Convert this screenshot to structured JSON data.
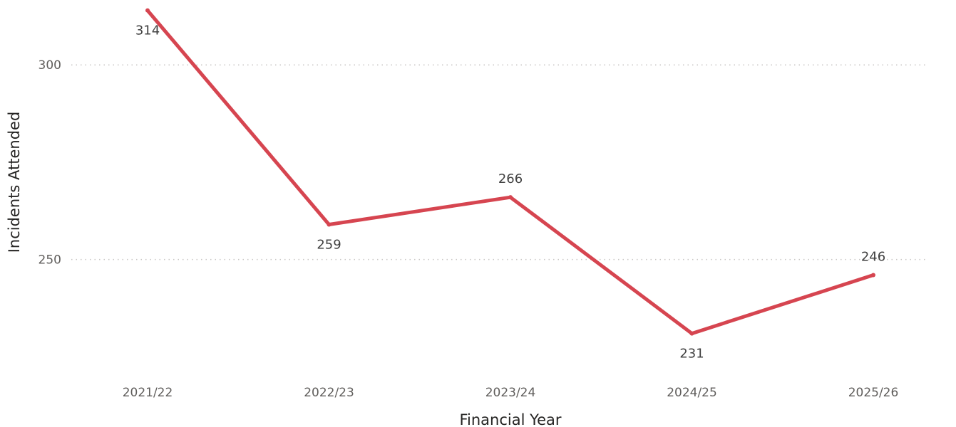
{
  "chart_data": {
    "type": "line",
    "xlabel": "Financial Year",
    "ylabel": "Incidents Attended",
    "categories": [
      "2021/22",
      "2022/23",
      "2023/24",
      "2024/25",
      "2025/26"
    ],
    "series": [
      {
        "values": [
          314,
          259,
          266,
          231,
          246
        ]
      }
    ],
    "data_labels": [
      "314",
      "259",
      "266",
      "231",
      "246"
    ],
    "y_ticks": [
      250,
      300
    ],
    "y_tick_labels": [
      "250",
      "300"
    ],
    "ylim": [
      222,
      315
    ],
    "grid": true,
    "line_color": "#d64550",
    "grid_color": "#c8c6c4"
  }
}
